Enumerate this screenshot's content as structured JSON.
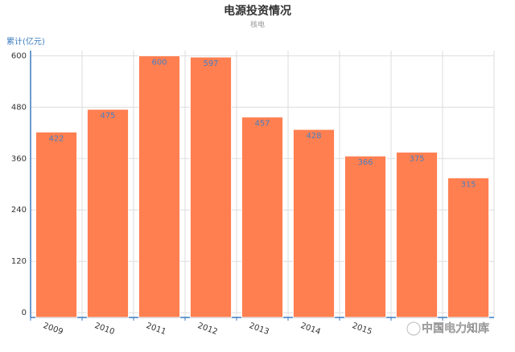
{
  "chart_data": {
    "type": "bar",
    "title": "电源投资情况",
    "subtitle": "核电",
    "y_label": "累计(亿元)",
    "categories": [
      "2009",
      "2010",
      "2011",
      "2012",
      "2013",
      "2014",
      "2015",
      null,
      null
    ],
    "values": [
      422,
      475,
      600,
      597,
      457,
      428,
      366,
      375,
      315
    ],
    "color": "#ff7f50",
    "label_color": "#4a7fc1",
    "ylim": [
      -11,
      612
    ],
    "yticks": [
      0,
      120,
      240,
      360,
      480,
      600
    ],
    "grid": true,
    "watermark": "中国电力知库"
  }
}
